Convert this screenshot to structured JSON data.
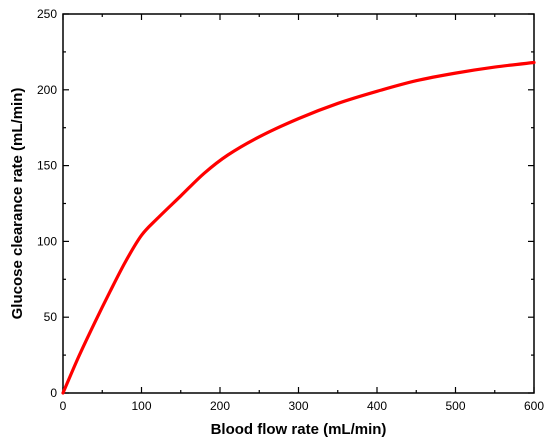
{
  "chart_data": {
    "type": "line",
    "title": "",
    "xlabel": "Blood flow rate (mL/min)",
    "ylabel": "Glucose clearance rate (mL/min)",
    "xlim": [
      0,
      600
    ],
    "ylim": [
      0,
      250
    ],
    "xticks": [
      0,
      100,
      200,
      300,
      400,
      500,
      600
    ],
    "yticks": [
      0,
      50,
      100,
      150,
      200,
      250
    ],
    "grid": false,
    "series": [
      {
        "color": "#ff0000",
        "x": [
          0,
          20,
          40,
          60,
          80,
          100,
          120,
          150,
          180,
          210,
          250,
          300,
          350,
          400,
          450,
          500,
          550,
          600
        ],
        "y": [
          0,
          24,
          46,
          67,
          87,
          104,
          115,
          130,
          145,
          157,
          169,
          181,
          191,
          199,
          206,
          211,
          215,
          218
        ]
      }
    ]
  }
}
